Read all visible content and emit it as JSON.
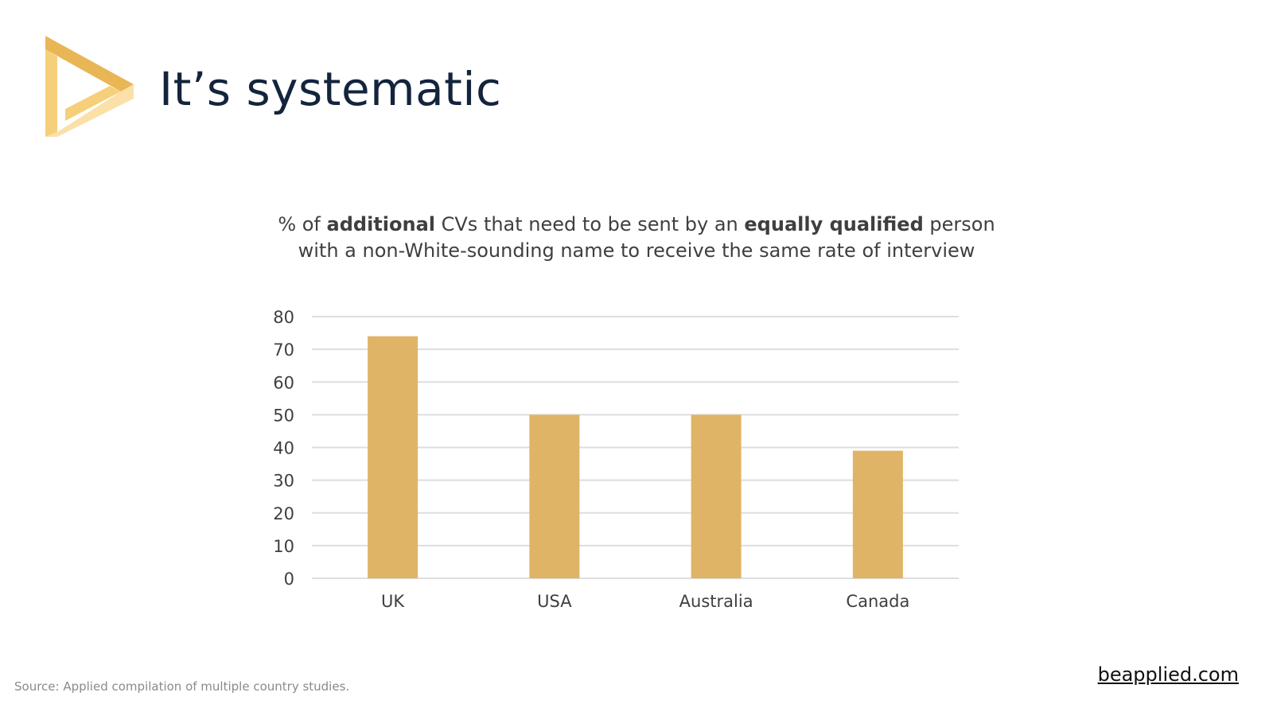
{
  "slide": {
    "title": "It’s systematic",
    "source": "Source: Applied compilation of multiple country studies.",
    "link": "beapplied.com"
  },
  "logo": {
    "icon": "play-triangle-logo-icon",
    "colors": [
      "#e9b656",
      "#f6cf7b",
      "#fbe1a8"
    ]
  },
  "chart_data": {
    "type": "bar",
    "title_parts": [
      {
        "text": "% of ",
        "bold": false
      },
      {
        "text": "additional",
        "bold": true
      },
      {
        "text": " CVs that need to be sent by an ",
        "bold": false
      },
      {
        "text": "equally qualified",
        "bold": true
      },
      {
        "text": " person with a non-White-sounding name to receive the same rate of interview",
        "bold": false
      }
    ],
    "categories": [
      "UK",
      "USA",
      "Australia",
      "Canada"
    ],
    "values": [
      74,
      50,
      50,
      39
    ],
    "ylim": [
      0,
      80
    ],
    "yticks": [
      0,
      10,
      20,
      30,
      40,
      50,
      60,
      70,
      80
    ],
    "grid": true,
    "bar_color": "#e0b466",
    "xlabel": "",
    "ylabel": ""
  }
}
